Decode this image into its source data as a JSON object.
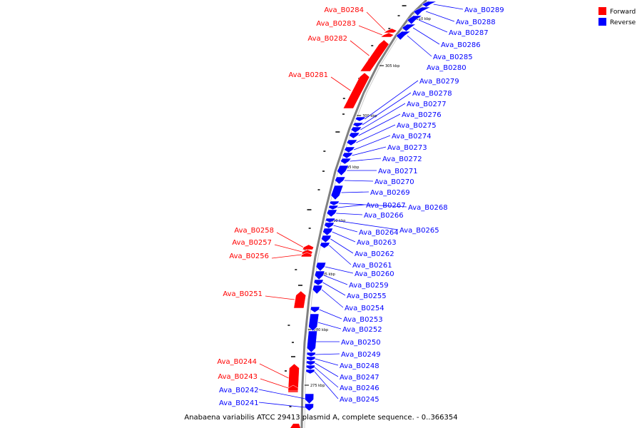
{
  "title": "Anabaena variabilis ATCC 29413 plasmid A, complete sequence. - 0..366354",
  "legend": [
    {
      "label": "Forward",
      "color": "#ff0000"
    },
    {
      "label": "Reverse",
      "color": "#0000ff"
    }
  ],
  "colors": {
    "forward": "#ff0000",
    "reverse": "#0000ff",
    "backbone": "#808080"
  },
  "ticks": [
    "310 kbp",
    "305 kbp",
    "300 kbp",
    "295 kbp",
    "290 kbp",
    "285 kbp",
    "280 kbp",
    "275 kbp"
  ],
  "forward_genes": [
    "Ava_B0284",
    "Ava_B0283",
    "Ava_B0282",
    "Ava_B0281",
    "Ava_B0258",
    "Ava_B0257",
    "Ava_B0256",
    "Ava_B0251",
    "Ava_B0244",
    "Ava_B0243"
  ],
  "reverse_genes": [
    "Ava_B0289",
    "Ava_B0288",
    "Ava_B0287",
    "Ava_B0286",
    "Ava_B0285",
    "Ava_B0280",
    "Ava_B0279",
    "Ava_B0278",
    "Ava_B0277",
    "Ava_B0276",
    "Ava_B0275",
    "Ava_B0274",
    "Ava_B0273",
    "Ava_B0272",
    "Ava_B0271",
    "Ava_B0270",
    "Ava_B0269",
    "Ava_B0268",
    "Ava_B0267",
    "Ava_B0266",
    "Ava_B0265",
    "Ava_B0264",
    "Ava_B0263",
    "Ava_B0262",
    "Ava_B0261",
    "Ava_B0260",
    "Ava_B0259",
    "Ava_B0255",
    "Ava_B0254",
    "Ava_B0253",
    "Ava_B0252",
    "Ava_B0250",
    "Ava_B0249",
    "Ava_B0248",
    "Ava_B0247",
    "Ava_B0246",
    "Ava_B0245",
    "Ava_B0242",
    "Ava_B0241"
  ]
}
